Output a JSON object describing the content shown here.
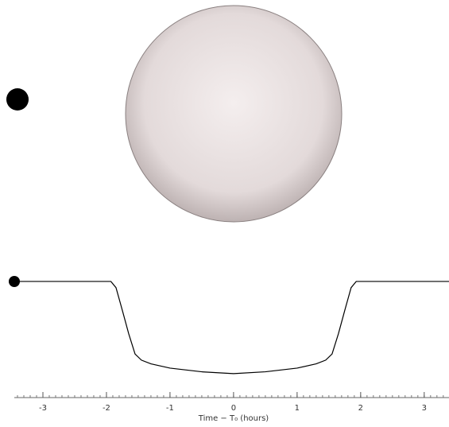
{
  "chart_data": {
    "type": "line",
    "x_label": "Time − T₀ (hours)",
    "x": [
      -3.45,
      -2.0,
      -1.93,
      -1.85,
      -1.75,
      -1.65,
      -1.55,
      -1.45,
      -1.3,
      -1.0,
      -0.5,
      0,
      0.5,
      1.0,
      1.3,
      1.45,
      1.55,
      1.65,
      1.75,
      1.85,
      1.93,
      2.0,
      3.39
    ],
    "series": [
      {
        "color": "#000000",
        "values": [
          1.0,
          1.0,
          1.0,
          0.999,
          0.9953,
          0.9915,
          0.9882,
          0.9872,
          0.9866,
          0.9859,
          0.9853,
          0.985,
          0.9853,
          0.9859,
          0.9866,
          0.9872,
          0.9882,
          0.9915,
          0.9953,
          0.999,
          1.0,
          1.0,
          1.0
        ]
      }
    ],
    "xlim": [
      -3.45,
      3.39
    ],
    "xticks": [
      -3,
      -2,
      -1,
      0,
      1,
      2,
      3
    ],
    "ylim": [
      0.9824,
      1.0031
    ],
    "grid": false
  }
}
